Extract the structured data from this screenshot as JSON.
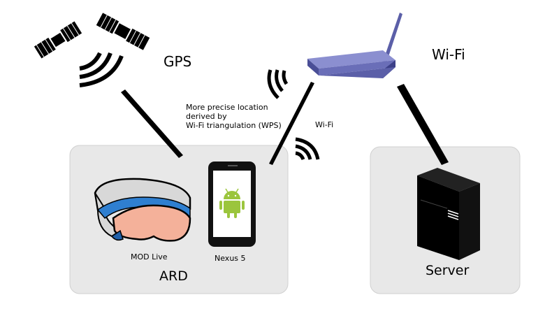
{
  "labels": {
    "gps": "GPS",
    "wifi_top": "Wi-Fi",
    "wifi_mid": "Wi-Fi",
    "wps_note": "More precise location\nderived by\nWi-Fi triangulation (WPS)",
    "mod_live": "MOD Live",
    "nexus5": "Nexus 5",
    "ard": "ARD",
    "server": "Server"
  },
  "icons": [
    "satellite-icon",
    "satellite-icon",
    "signal-waves-icon",
    "wifi-router-icon",
    "goggles-icon",
    "smartphone-icon",
    "android-logo-icon",
    "server-tower-icon"
  ],
  "colors": {
    "box_fill": "#e8e8e8",
    "router": "#5b5fa8",
    "goggle_strap": "#2f7fd0",
    "goggle_lens": "#f4b19a",
    "android": "#9bc53d"
  }
}
